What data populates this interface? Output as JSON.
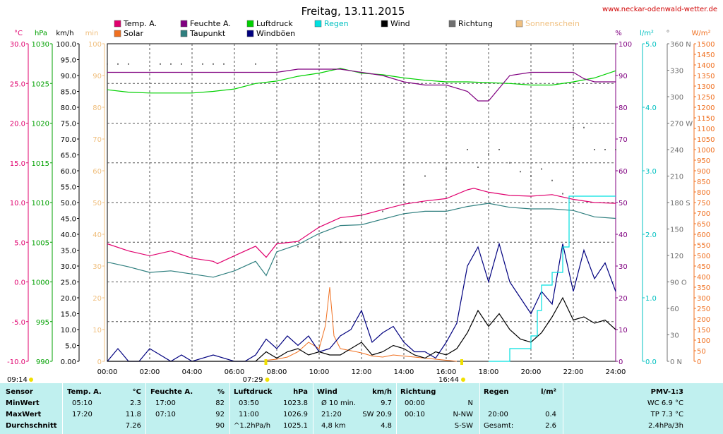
{
  "page": {
    "title": "Freitag, 13.11.2015",
    "source": "www.neckar-odenwald-wetter.de"
  },
  "legend": [
    {
      "label": "Temp. A.",
      "color": "#e0006e"
    },
    {
      "label": "Solar",
      "color": "#f07020"
    },
    {
      "label": "Feuchte A.",
      "color": "#800080"
    },
    {
      "label": "Taupunkt",
      "color": "#2f7f7f"
    },
    {
      "label": "Luftdruck",
      "color": "#00d000"
    },
    {
      "label": "Windböen",
      "color": "#00007f"
    },
    {
      "label": "Regen",
      "color": "#00e0e0"
    },
    {
      "label": "Wind",
      "color": "#000000"
    },
    {
      "label": "Richtung",
      "color": "#707070"
    },
    {
      "label": "Sonnenschein",
      "color": "#f0c080"
    }
  ],
  "axes": {
    "temp": {
      "unit": "°C",
      "color": "#e0006e",
      "ticks": [
        "30.0",
        "25.0",
        "20.0",
        "15.0",
        "10.0",
        "5.0",
        "0.0",
        "-5.0",
        "-10.0"
      ]
    },
    "pressure": {
      "unit": "hPa",
      "color": "#00a000",
      "ticks": [
        "1030",
        "1025",
        "1020",
        "1015",
        "1010",
        "1005",
        "1000",
        "995",
        "990"
      ]
    },
    "wind": {
      "unit": "km/h",
      "color": "#000000",
      "ticks": [
        "100.0",
        "95.0",
        "90.0",
        "85.0",
        "80.0",
        "75.0",
        "70.0",
        "65.0",
        "60.0",
        "55.0",
        "50.0",
        "45.0",
        "40.0",
        "35.0",
        "30.0",
        "25.0",
        "20.0",
        "15.0",
        "10.0",
        "5.0",
        "0.00"
      ]
    },
    "minutes": {
      "unit": "min",
      "color": "#f0c080",
      "ticks": [
        "100",
        "90",
        "80",
        "70",
        "60",
        "50",
        "40",
        "30",
        "20",
        "10",
        "0"
      ]
    },
    "humidity": {
      "unit": "%",
      "color": "#800080",
      "ticks": [
        "100",
        "90",
        "80",
        "70",
        "60",
        "50",
        "40",
        "30",
        "20",
        "10",
        "0"
      ]
    },
    "rain": {
      "unit": "l/m²",
      "color": "#00c0c0",
      "ticks": [
        "5.0",
        "4.0",
        "3.0",
        "2.0",
        "1.0",
        "0.0"
      ]
    },
    "direction": {
      "unit": "°",
      "color": "#707070",
      "ticks": [
        "360 N",
        "330",
        "300",
        "270 W",
        "240",
        "210",
        "180 S",
        "150",
        "120",
        "90 O",
        "60",
        "30",
        "0 N"
      ]
    },
    "solar": {
      "unit": "W/m²",
      "color": "#f07020",
      "ticks": [
        "1500",
        "1450",
        "1400",
        "1350",
        "1300",
        "1250",
        "1200",
        "1150",
        "1100",
        "1050",
        "1000",
        "950",
        "900",
        "850",
        "800",
        "750",
        "700",
        "650",
        "600",
        "550",
        "500",
        "450",
        "400",
        "350",
        "300",
        "250",
        "200",
        "150",
        "100",
        "50",
        "0"
      ]
    },
    "time": [
      "00:00",
      "02:00",
      "04:00",
      "06:00",
      "08:00",
      "10:00",
      "12:00",
      "14:00",
      "16:00",
      "18:00",
      "20:00",
      "22:00",
      "24:00"
    ]
  },
  "sun": {
    "sunrise": "07:29",
    "sunset": "16:44",
    "sunshine_duration": "09:14"
  },
  "chart_data": {
    "type": "line",
    "x_unit": "hour of day",
    "xlim": [
      0,
      24
    ],
    "series": [
      {
        "name": "Temp. A.",
        "unit": "°C",
        "x": [
          0,
          1,
          2,
          3,
          4,
          5,
          5.2,
          6,
          7,
          7.5,
          8,
          9,
          10,
          11,
          12,
          13,
          14,
          15,
          16,
          17,
          17.3,
          18,
          19,
          20,
          21,
          22,
          23,
          24
        ],
        "values": [
          4.8,
          3.9,
          3.3,
          3.9,
          3.0,
          2.6,
          2.3,
          3.3,
          4.5,
          3.1,
          4.8,
          5.1,
          6.9,
          8.1,
          8.4,
          9.1,
          9.8,
          10.2,
          10.5,
          11.6,
          11.8,
          11.3,
          10.9,
          10.8,
          11.0,
          10.4,
          10.0,
          9.9
        ]
      },
      {
        "name": "Taupunkt",
        "unit": "°C",
        "x": [
          0,
          1,
          2,
          3,
          4,
          5,
          6,
          7,
          7.5,
          8,
          9,
          10,
          11,
          12,
          13,
          14,
          15,
          16,
          17,
          18,
          19,
          20,
          21,
          22,
          23,
          24
        ],
        "values": [
          2.5,
          1.9,
          1.2,
          1.4,
          1.0,
          0.6,
          1.4,
          2.6,
          0.8,
          3.8,
          4.7,
          6.1,
          7.1,
          7.2,
          7.9,
          8.6,
          8.9,
          8.9,
          9.5,
          9.9,
          9.4,
          9.2,
          9.2,
          9.0,
          8.2,
          8.0
        ]
      },
      {
        "name": "Feuchte A.",
        "unit": "%",
        "x": [
          0,
          2,
          4,
          6,
          7,
          8,
          9,
          10,
          11,
          12,
          13,
          14,
          15,
          16,
          17,
          17.5,
          18,
          18.5,
          19,
          20,
          21,
          22,
          22.5,
          23,
          24
        ],
        "values": [
          91,
          91,
          91,
          91,
          91,
          91,
          92,
          92,
          92,
          91,
          90,
          88,
          87,
          87,
          85,
          82,
          82,
          86,
          90,
          91,
          91,
          91,
          89,
          88,
          88
        ]
      },
      {
        "name": "Luftdruck",
        "unit": "hPa",
        "x": [
          0,
          1,
          2,
          3,
          4,
          5,
          6,
          7,
          8,
          9,
          10,
          11,
          12,
          13,
          14,
          15,
          16,
          17,
          18,
          19,
          20,
          21,
          22,
          23,
          24
        ],
        "values": [
          1024.2,
          1023.9,
          1023.8,
          1023.8,
          1023.8,
          1024.0,
          1024.3,
          1025.0,
          1025.3,
          1025.9,
          1026.3,
          1026.9,
          1026.3,
          1026.1,
          1025.7,
          1025.4,
          1025.2,
          1025.2,
          1025.1,
          1025.0,
          1024.8,
          1024.8,
          1025.2,
          1025.7,
          1026.6
        ]
      },
      {
        "name": "Windböen",
        "unit": "km/h",
        "x": [
          0,
          0.5,
          1,
          1.5,
          2,
          2.5,
          3,
          3.5,
          4,
          5,
          6,
          6.5,
          7,
          7.5,
          8,
          8.5,
          9,
          9.5,
          10,
          10.5,
          11,
          11.5,
          12,
          12.5,
          13,
          13.5,
          14,
          14.5,
          15,
          15.5,
          16,
          16.5,
          17,
          17.5,
          18,
          18.5,
          19,
          19.5,
          20,
          20.5,
          21,
          21.5,
          22,
          22.5,
          23,
          23.5,
          24
        ],
        "values": [
          0,
          4,
          0,
          0,
          4,
          2,
          0,
          2,
          0,
          2,
          0,
          0,
          2,
          7,
          4,
          8,
          5,
          8,
          3,
          4,
          8,
          10,
          16,
          6,
          9,
          11,
          6,
          3,
          3,
          1,
          6,
          12,
          30,
          36,
          25,
          37,
          25,
          20,
          15,
          22,
          18,
          37,
          22,
          35,
          26,
          31,
          22
        ]
      },
      {
        "name": "Wind",
        "unit": "km/h",
        "x": [
          0,
          1,
          2,
          3,
          4,
          5,
          6,
          7,
          7.5,
          8,
          8.5,
          9,
          9.5,
          10,
          10.5,
          11,
          11.5,
          12,
          12.5,
          13,
          13.5,
          14,
          14.5,
          15,
          15.5,
          16,
          16.5,
          17,
          17.5,
          18,
          18.5,
          19,
          19.5,
          20,
          20.5,
          21,
          21.5,
          22,
          22.5,
          23,
          23.5,
          24
        ],
        "values": [
          0,
          0,
          0,
          0,
          0,
          0,
          0,
          0,
          3,
          1,
          3,
          4,
          2,
          3,
          2,
          2,
          4,
          6,
          2,
          3,
          5,
          4,
          2,
          1,
          3,
          2,
          4,
          9,
          16,
          11,
          15,
          10,
          7,
          6,
          9,
          14,
          20,
          13,
          14,
          12,
          13,
          10
        ]
      },
      {
        "name": "Regen",
        "unit": "l/m²",
        "x": [
          18,
          19,
          19.9,
          20,
          20.3,
          20.5,
          21,
          21.2,
          21.5,
          21.8,
          22,
          23,
          24
        ],
        "values": [
          0,
          0.2,
          0.2,
          0.4,
          0.8,
          1.2,
          1.4,
          1.4,
          1.8,
          2.6,
          2.6,
          2.6,
          2.6
        ]
      },
      {
        "name": "Solar",
        "unit": "W/m²",
        "x": [
          7.5,
          8,
          8.5,
          9,
          9.5,
          10,
          10.3,
          10.5,
          10.7,
          11,
          11.5,
          12,
          12.5,
          13,
          13.5,
          14,
          15,
          16,
          16.5
        ],
        "values": [
          5,
          10,
          20,
          45,
          90,
          60,
          170,
          350,
          120,
          60,
          50,
          40,
          25,
          20,
          30,
          25,
          15,
          5,
          0
        ]
      },
      {
        "name": "Richtung",
        "unit": "°",
        "x": [
          0,
          0.5,
          1,
          2.5,
          3,
          3.5,
          4.5,
          5,
          5.5,
          7,
          8,
          9,
          10,
          11,
          12,
          13,
          14,
          15,
          16,
          17,
          17.5,
          18,
          18.5,
          19,
          19.5,
          20,
          20.5,
          21,
          21.5,
          22,
          22.5,
          23,
          23.5,
          24
        ],
        "values": [
          337,
          337,
          337,
          337,
          337,
          337,
          337,
          337,
          337,
          337,
          112,
          130,
          130,
          135,
          165,
          170,
          200,
          210,
          218,
          240,
          220,
          235,
          240,
          225,
          215,
          210,
          218,
          205,
          190,
          265,
          265,
          240,
          240,
          240
        ]
      }
    ]
  },
  "table": {
    "headers": {
      "sensor": "Sensor",
      "temp": "Temp. A.",
      "temp_unit": "°C",
      "hum": "Feuchte A.",
      "hum_unit": "%",
      "press": "Luftdruck",
      "press_unit": "hPa",
      "wind": "Wind",
      "wind_unit": "km/h",
      "dir": "Richtung",
      "rain": "Regen",
      "rain_unit": "l/m²",
      "pmv": "PMV-1:3"
    },
    "rows": [
      {
        "label": "MinWert",
        "temp_t": "05:10",
        "temp_v": "2.3",
        "hum_t": "17:00",
        "hum_v": "82",
        "press_t": "03:50",
        "press_v": "1023.8",
        "wind_t": "Ø 10 min.",
        "wind_v": "9.7",
        "dir_t": "00:00",
        "dir_v": "N",
        "rain_t": "",
        "rain_v": "",
        "pmv": "WC 6.9 °C"
      },
      {
        "label": "MaxWert",
        "temp_t": "17:20",
        "temp_v": "11.8",
        "hum_t": "07:10",
        "hum_v": "92",
        "press_t": "11:00",
        "press_v": "1026.9",
        "wind_t": "21:20",
        "wind_v": "SW 20.9",
        "dir_t": "00:10",
        "dir_v": "N-NW",
        "rain_t": "20:00",
        "rain_v": "0.4",
        "pmv": "TP 7.3 °C"
      },
      {
        "label": "Durchschnitt",
        "temp_t": "",
        "temp_v": "7.26",
        "hum_t": "",
        "hum_v": "90",
        "press_t": "^1.2hPa/h",
        "press_v": "1025.1",
        "wind_t": "4,8 km",
        "wind_v": "4.8",
        "dir_t": "",
        "dir_v": "S-SW",
        "rain_t": "Gesamt:",
        "rain_v": "2.6",
        "pmv": "2.4hPa/3h"
      }
    ]
  }
}
